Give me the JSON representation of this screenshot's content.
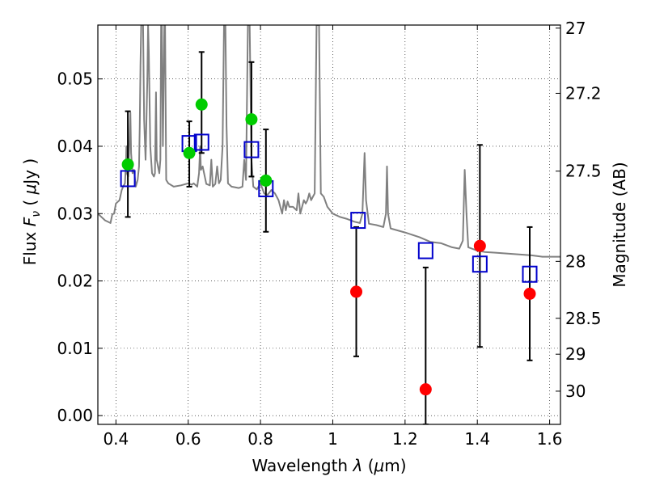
{
  "chart_data": {
    "type": "scatter",
    "xlabel": "Wavelength",
    "xlabel_symbol": "λ",
    "xlabel_unit_open": "(",
    "xlabel_unit_symbol": "μ",
    "xlabel_unit_rest": "m)",
    "ylabel_flux": "Flux",
    "ylabel_symbol": "F",
    "ylabel_symbol_sub": "ν",
    "ylabel_unit_open": "(",
    "ylabel_unit_symbol": "μ",
    "ylabel_unit_rest": "Jy",
    "ylabel_unit_close": ")",
    "y2label": "Magnitude (AB)",
    "xlim": [
      0.35,
      1.63
    ],
    "ylim": [
      -0.0013,
      0.058
    ],
    "grid": true,
    "x_ticks": [
      0.4,
      0.6,
      0.8,
      1.0,
      1.2,
      1.4,
      1.6
    ],
    "x_tick_labels": [
      "0.4",
      "0.6",
      "0.8",
      "1",
      "1.2",
      "1.4",
      "1.6"
    ],
    "y_ticks": [
      0.0,
      0.01,
      0.02,
      0.03,
      0.04,
      0.05
    ],
    "y_tick_labels": [
      "0.00",
      "0.01",
      "0.02",
      "0.03",
      "0.04",
      "0.05"
    ],
    "mag_ticks": [
      27,
      27.2,
      27.5,
      28,
      28.5,
      29,
      30
    ],
    "mag_tick_labels": [
      "27",
      "27.2",
      "27.5",
      "28",
      "28.5",
      "29",
      "30"
    ],
    "colors": {
      "model": "#808080",
      "green": "#00cc00",
      "red": "#ff0000",
      "model_box": "#0000cc",
      "errorbar": "#000000"
    },
    "model_spectrum": [
      [
        0.35,
        0.03
      ],
      [
        0.37,
        0.029
      ],
      [
        0.385,
        0.0286
      ],
      [
        0.39,
        0.0299
      ],
      [
        0.395,
        0.03
      ],
      [
        0.4,
        0.0315
      ],
      [
        0.41,
        0.032
      ],
      [
        0.416,
        0.0335
      ],
      [
        0.42,
        0.034
      ],
      [
        0.425,
        0.0345
      ],
      [
        0.428,
        0.038
      ],
      [
        0.429,
        0.04
      ],
      [
        0.43,
        0.036
      ],
      [
        0.434,
        0.0355
      ],
      [
        0.437,
        0.04
      ],
      [
        0.44,
        0.045
      ],
      [
        0.442,
        0.039
      ],
      [
        0.446,
        0.036
      ],
      [
        0.45,
        0.0365
      ],
      [
        0.455,
        0.034
      ],
      [
        0.46,
        0.035
      ],
      [
        0.464,
        0.037
      ],
      [
        0.466,
        0.043
      ],
      [
        0.468,
        0.052
      ],
      [
        0.47,
        0.058
      ],
      [
        0.475,
        0.058
      ],
      [
        0.478,
        0.044
      ],
      [
        0.482,
        0.038
      ],
      [
        0.487,
        0.05
      ],
      [
        0.489,
        0.058
      ],
      [
        0.491,
        0.054
      ],
      [
        0.495,
        0.04
      ],
      [
        0.5,
        0.036
      ],
      [
        0.505,
        0.0355
      ],
      [
        0.508,
        0.036
      ],
      [
        0.511,
        0.048
      ],
      [
        0.513,
        0.038
      ],
      [
        0.52,
        0.036
      ],
      [
        0.523,
        0.038
      ],
      [
        0.525,
        0.058
      ],
      [
        0.527,
        0.058
      ],
      [
        0.53,
        0.04
      ],
      [
        0.534,
        0.058
      ],
      [
        0.536,
        0.058
      ],
      [
        0.539,
        0.035
      ],
      [
        0.545,
        0.0345
      ],
      [
        0.56,
        0.034
      ],
      [
        0.58,
        0.0342
      ],
      [
        0.6,
        0.0345
      ],
      [
        0.61,
        0.0343
      ],
      [
        0.615,
        0.0345
      ],
      [
        0.625,
        0.034
      ],
      [
        0.63,
        0.036
      ],
      [
        0.633,
        0.04
      ],
      [
        0.635,
        0.0365
      ],
      [
        0.64,
        0.037
      ],
      [
        0.65,
        0.0344
      ],
      [
        0.66,
        0.0342
      ],
      [
        0.664,
        0.038
      ],
      [
        0.668,
        0.034
      ],
      [
        0.675,
        0.0344
      ],
      [
        0.68,
        0.037
      ],
      [
        0.685,
        0.0345
      ],
      [
        0.69,
        0.035
      ],
      [
        0.695,
        0.04
      ],
      [
        0.699,
        0.058
      ],
      [
        0.703,
        0.058
      ],
      [
        0.706,
        0.043
      ],
      [
        0.71,
        0.0345
      ],
      [
        0.72,
        0.034
      ],
      [
        0.74,
        0.0338
      ],
      [
        0.75,
        0.034
      ],
      [
        0.755,
        0.038
      ],
      [
        0.76,
        0.035
      ],
      [
        0.765,
        0.058
      ],
      [
        0.77,
        0.058
      ],
      [
        0.775,
        0.038
      ],
      [
        0.78,
        0.034
      ],
      [
        0.79,
        0.0336
      ],
      [
        0.8,
        0.0345
      ],
      [
        0.81,
        0.033
      ],
      [
        0.82,
        0.0328
      ],
      [
        0.83,
        0.0335
      ],
      [
        0.84,
        0.033
      ],
      [
        0.85,
        0.032
      ],
      [
        0.86,
        0.03
      ],
      [
        0.865,
        0.032
      ],
      [
        0.87,
        0.0305
      ],
      [
        0.875,
        0.0318
      ],
      [
        0.88,
        0.031
      ],
      [
        0.89,
        0.031
      ],
      [
        0.9,
        0.0305
      ],
      [
        0.905,
        0.033
      ],
      [
        0.91,
        0.03
      ],
      [
        0.92,
        0.032
      ],
      [
        0.925,
        0.0315
      ],
      [
        0.93,
        0.032
      ],
      [
        0.935,
        0.033
      ],
      [
        0.94,
        0.032
      ],
      [
        0.945,
        0.0325
      ],
      [
        0.95,
        0.033
      ],
      [
        0.955,
        0.058
      ],
      [
        0.962,
        0.058
      ],
      [
        0.967,
        0.033
      ],
      [
        0.975,
        0.0325
      ],
      [
        0.985,
        0.031
      ],
      [
        1.0,
        0.03
      ],
      [
        1.02,
        0.0295
      ],
      [
        1.04,
        0.0292
      ],
      [
        1.06,
        0.0288
      ],
      [
        1.075,
        0.0286
      ],
      [
        1.082,
        0.03
      ],
      [
        1.088,
        0.039
      ],
      [
        1.092,
        0.032
      ],
      [
        1.1,
        0.0285
      ],
      [
        1.12,
        0.0283
      ],
      [
        1.14,
        0.028
      ],
      [
        1.147,
        0.03
      ],
      [
        1.15,
        0.037
      ],
      [
        1.153,
        0.03
      ],
      [
        1.16,
        0.0278
      ],
      [
        1.2,
        0.0272
      ],
      [
        1.24,
        0.0265
      ],
      [
        1.27,
        0.0258
      ],
      [
        1.3,
        0.0256
      ],
      [
        1.33,
        0.025
      ],
      [
        1.35,
        0.0248
      ],
      [
        1.36,
        0.026
      ],
      [
        1.365,
        0.0365
      ],
      [
        1.37,
        0.03
      ],
      [
        1.375,
        0.025
      ],
      [
        1.4,
        0.0245
      ],
      [
        1.42,
        0.0243
      ],
      [
        1.45,
        0.0242
      ],
      [
        1.5,
        0.024
      ],
      [
        1.55,
        0.0238
      ],
      [
        1.58,
        0.0236
      ],
      [
        1.63,
        0.0236
      ]
    ],
    "series": [
      {
        "marker": "circle",
        "color": "green",
        "points": [
          {
            "x": 0.433,
            "y": 0.0373
          },
          {
            "x": 0.603,
            "y": 0.039
          },
          {
            "x": 0.637,
            "y": 0.0462
          },
          {
            "x": 0.775,
            "y": 0.044
          },
          {
            "x": 0.815,
            "y": 0.0349
          }
        ]
      },
      {
        "marker": "circle",
        "color": "red",
        "points": [
          {
            "x": 1.065,
            "y": 0.0184
          },
          {
            "x": 1.257,
            "y": 0.0039
          },
          {
            "x": 1.407,
            "y": 0.0252
          },
          {
            "x": 1.545,
            "y": 0.0181
          }
        ]
      },
      {
        "marker": "square",
        "color": "model_box",
        "points": [
          {
            "x": 0.433,
            "y": 0.0352
          },
          {
            "x": 0.603,
            "y": 0.0404
          },
          {
            "x": 0.637,
            "y": 0.0406
          },
          {
            "x": 0.775,
            "y": 0.0395
          },
          {
            "x": 0.815,
            "y": 0.0337
          },
          {
            "x": 1.07,
            "y": 0.029
          },
          {
            "x": 1.257,
            "y": 0.0245
          },
          {
            "x": 1.407,
            "y": 0.0225
          },
          {
            "x": 1.545,
            "y": 0.021
          }
        ]
      }
    ],
    "errorbars": [
      {
        "x": 0.433,
        "ylow": 0.0295,
        "yhigh": 0.0452
      },
      {
        "x": 0.603,
        "ylow": 0.034,
        "yhigh": 0.0437
      },
      {
        "x": 0.637,
        "ylow": 0.039,
        "yhigh": 0.054
      },
      {
        "x": 0.775,
        "ylow": 0.0355,
        "yhigh": 0.0525
      },
      {
        "x": 0.815,
        "ylow": 0.0273,
        "yhigh": 0.0425
      },
      {
        "x": 1.065,
        "ylow": 0.0088,
        "yhigh": 0.028
      },
      {
        "x": 1.257,
        "ylow": -0.0013,
        "yhigh": 0.022
      },
      {
        "x": 1.407,
        "ylow": 0.0102,
        "yhigh": 0.0402
      },
      {
        "x": 1.545,
        "ylow": 0.0082,
        "yhigh": 0.028
      }
    ]
  }
}
